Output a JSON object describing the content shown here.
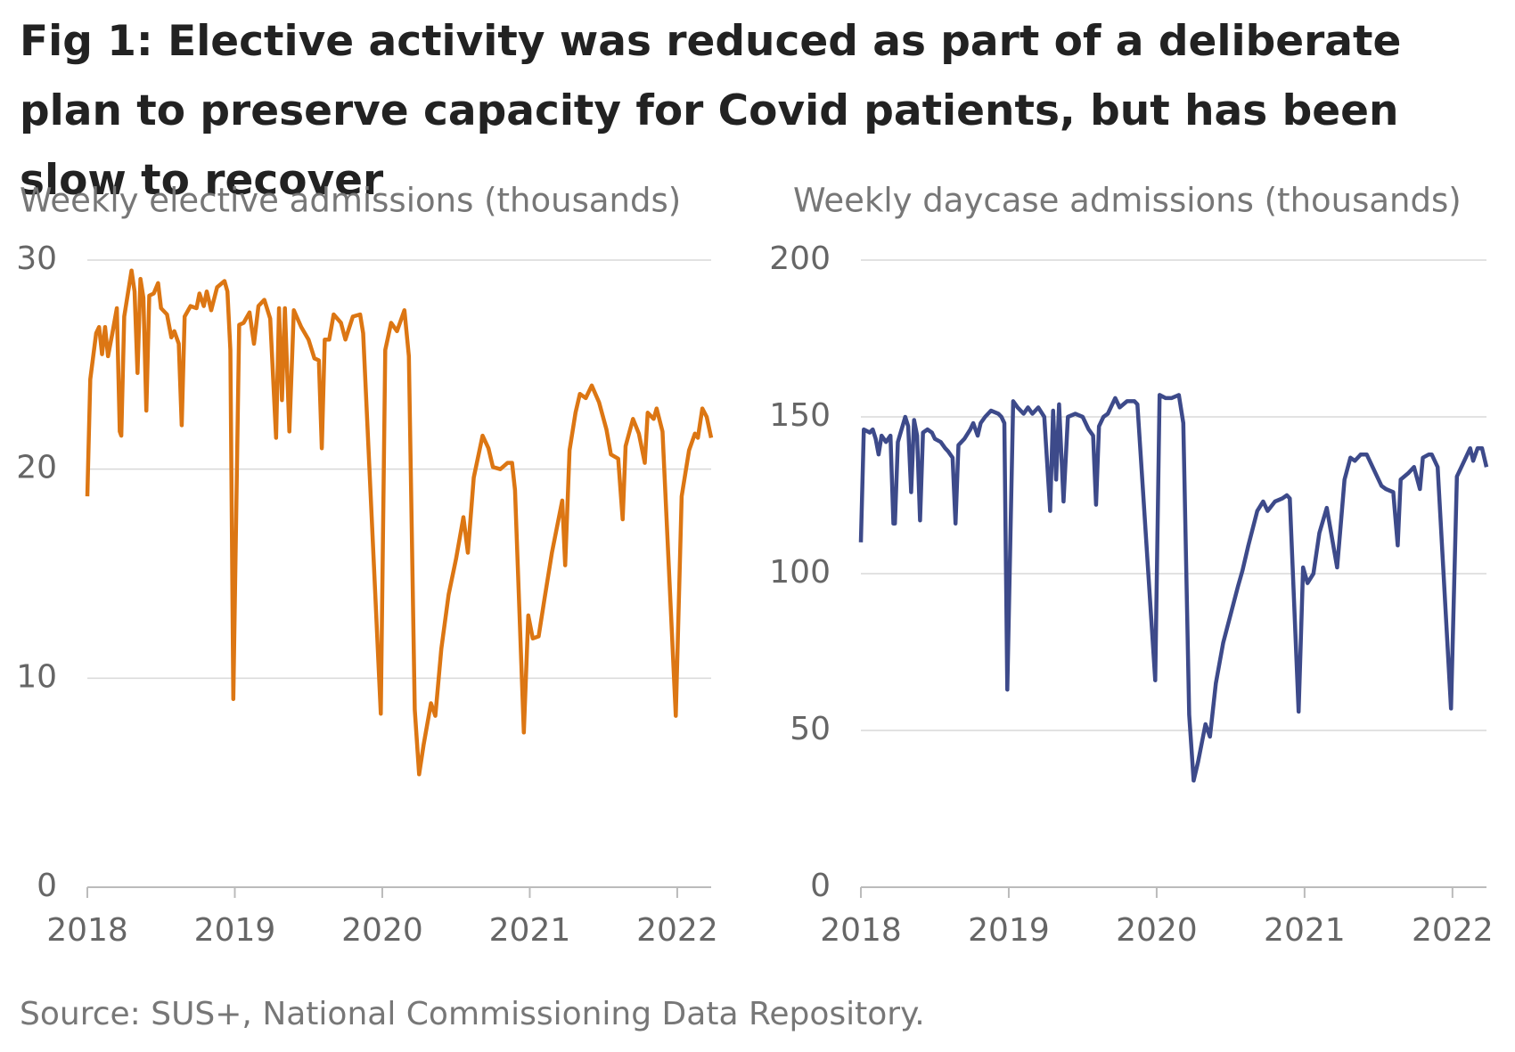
{
  "title": "Fig 1: Elective activity was reduced as part of a deliberate plan to preserve capacity for Covid patients, but has been slow to recover",
  "source": "Source: SUS+, National Commissioning Data Repository.",
  "chart_data": [
    {
      "type": "line",
      "axis_title": "Weekly elective admissions (thousands)",
      "color": "#dc7613",
      "xlim": [
        2018,
        2022.23
      ],
      "xticks": [
        2018,
        2019,
        2020,
        2021,
        2022
      ],
      "ylim": [
        0,
        30
      ],
      "yticks": [
        0,
        10,
        20,
        30
      ],
      "grid": true,
      "x": [
        2018.0,
        2018.02,
        2018.06,
        2018.08,
        2018.1,
        2018.12,
        2018.14,
        2018.17,
        2018.2,
        2018.22,
        2018.23,
        2018.25,
        2018.3,
        2018.32,
        2018.34,
        2018.36,
        2018.38,
        2018.4,
        2018.42,
        2018.45,
        2018.48,
        2018.5,
        2018.54,
        2018.57,
        2018.59,
        2018.62,
        2018.64,
        2018.66,
        2018.7,
        2018.74,
        2018.76,
        2018.79,
        2018.81,
        2018.84,
        2018.88,
        2018.93,
        2018.95,
        2018.97,
        2018.99,
        2019.03,
        2019.06,
        2019.1,
        2019.13,
        2019.16,
        2019.2,
        2019.24,
        2019.28,
        2019.3,
        2019.32,
        2019.34,
        2019.37,
        2019.4,
        2019.45,
        2019.5,
        2019.54,
        2019.57,
        2019.59,
        2019.61,
        2019.64,
        2019.67,
        2019.72,
        2019.75,
        2019.8,
        2019.85,
        2019.87,
        2019.99,
        2020.02,
        2020.06,
        2020.1,
        2020.15,
        2020.18,
        2020.22,
        2020.25,
        2020.28,
        2020.33,
        2020.36,
        2020.4,
        2020.45,
        2020.5,
        2020.55,
        2020.58,
        2020.62,
        2020.68,
        2020.72,
        2020.75,
        2020.8,
        2020.85,
        2020.88,
        2020.9,
        2020.96,
        2020.99,
        2021.02,
        2021.06,
        2021.1,
        2021.15,
        2021.22,
        2021.24,
        2021.27,
        2021.31,
        2021.34,
        2021.38,
        2021.42,
        2021.47,
        2021.52,
        2021.55,
        2021.6,
        2021.63,
        2021.65,
        2021.7,
        2021.74,
        2021.78,
        2021.8,
        2021.84,
        2021.86,
        2021.9,
        2021.99,
        2022.03,
        2022.08,
        2022.12,
        2022.14,
        2022.17,
        2022.2,
        2022.23
      ],
      "values": [
        18.7,
        24.3,
        26.5,
        26.8,
        25.5,
        26.8,
        25.4,
        26.5,
        27.7,
        21.8,
        21.6,
        27.3,
        29.5,
        28.5,
        24.6,
        29.1,
        28.2,
        22.8,
        28.3,
        28.4,
        28.9,
        27.7,
        27.4,
        26.3,
        26.6,
        26.0,
        22.1,
        27.3,
        27.8,
        27.7,
        28.4,
        27.8,
        28.5,
        27.6,
        28.7,
        29.0,
        28.5,
        25.7,
        9.0,
        26.9,
        27.0,
        27.5,
        26.0,
        27.8,
        28.1,
        27.2,
        21.5,
        27.7,
        23.3,
        27.7,
        21.8,
        27.6,
        26.8,
        26.2,
        25.3,
        25.2,
        21.0,
        26.2,
        26.2,
        27.4,
        27.0,
        26.2,
        27.3,
        27.4,
        26.5,
        8.3,
        25.7,
        27.0,
        26.6,
        27.6,
        25.4,
        8.5,
        5.4,
        6.8,
        8.8,
        8.2,
        11.4,
        14.0,
        15.7,
        17.7,
        16.0,
        19.6,
        21.6,
        21.0,
        20.1,
        20.0,
        20.3,
        20.3,
        19.0,
        7.4,
        13.0,
        11.9,
        12.0,
        13.8,
        16.0,
        18.5,
        15.4,
        20.9,
        22.7,
        23.6,
        23.4,
        24.0,
        23.2,
        21.9,
        20.7,
        20.5,
        17.6,
        21.1,
        22.4,
        21.7,
        20.3,
        22.7,
        22.4,
        22.9,
        21.8,
        8.2,
        18.7,
        20.9,
        21.7,
        21.5,
        22.9,
        22.5,
        21.5
      ]
    },
    {
      "type": "line",
      "axis_title": "Weekly daycase admissions (thousands)",
      "color": "#3d4a8a",
      "xlim": [
        2018,
        2022.23
      ],
      "xticks": [
        2018,
        2019,
        2020,
        2021,
        2022
      ],
      "ylim": [
        0,
        200
      ],
      "yticks": [
        0,
        50,
        100,
        150,
        200
      ],
      "grid": true,
      "x": [
        2018.0,
        2018.02,
        2018.06,
        2018.08,
        2018.1,
        2018.12,
        2018.14,
        2018.17,
        2018.2,
        2018.22,
        2018.23,
        2018.25,
        2018.3,
        2018.32,
        2018.34,
        2018.36,
        2018.38,
        2018.4,
        2018.42,
        2018.45,
        2018.48,
        2018.5,
        2018.54,
        2018.57,
        2018.59,
        2018.62,
        2018.64,
        2018.66,
        2018.7,
        2018.74,
        2018.76,
        2018.79,
        2018.81,
        2018.84,
        2018.88,
        2018.93,
        2018.95,
        2018.97,
        2018.99,
        2019.03,
        2019.06,
        2019.1,
        2019.13,
        2019.16,
        2019.2,
        2019.24,
        2019.28,
        2019.3,
        2019.32,
        2019.34,
        2019.37,
        2019.4,
        2019.45,
        2019.5,
        2019.54,
        2019.57,
        2019.59,
        2019.61,
        2019.64,
        2019.67,
        2019.72,
        2019.75,
        2019.8,
        2019.85,
        2019.87,
        2019.99,
        2020.02,
        2020.06,
        2020.1,
        2020.15,
        2020.18,
        2020.22,
        2020.25,
        2020.28,
        2020.33,
        2020.36,
        2020.4,
        2020.45,
        2020.5,
        2020.55,
        2020.58,
        2020.62,
        2020.68,
        2020.72,
        2020.75,
        2020.8,
        2020.85,
        2020.88,
        2020.9,
        2020.96,
        2020.99,
        2021.02,
        2021.06,
        2021.1,
        2021.15,
        2021.22,
        2021.24,
        2021.27,
        2021.31,
        2021.34,
        2021.38,
        2021.42,
        2021.47,
        2021.52,
        2021.55,
        2021.6,
        2021.63,
        2021.65,
        2021.7,
        2021.74,
        2021.78,
        2021.8,
        2021.84,
        2021.86,
        2021.9,
        2021.99,
        2022.03,
        2022.08,
        2022.12,
        2022.14,
        2022.17,
        2022.2,
        2022.23
      ],
      "values": [
        110,
        146,
        145,
        146,
        143,
        138,
        144,
        142,
        144,
        116,
        116,
        142,
        150,
        147,
        126,
        149,
        144,
        117,
        145,
        146,
        145,
        143,
        142,
        140,
        139,
        137,
        116,
        141,
        143,
        146,
        148,
        144,
        148,
        150,
        152,
        151,
        150,
        148,
        63,
        155,
        153,
        151,
        153,
        151,
        153,
        150,
        120,
        152,
        130,
        154,
        123,
        150,
        151,
        150,
        146,
        144,
        122,
        147,
        150,
        151,
        156,
        153,
        155,
        155,
        154,
        66,
        157,
        156,
        156,
        157,
        148,
        55,
        34,
        40,
        52,
        48,
        65,
        78,
        87,
        96,
        101,
        109,
        120,
        123,
        120,
        123,
        124,
        125,
        124,
        56,
        102,
        97,
        100,
        113,
        121,
        102,
        113,
        130,
        137,
        136,
        138,
        138,
        133,
        128,
        127,
        126,
        109,
        130,
        132,
        134,
        127,
        137,
        138,
        138,
        134,
        57,
        131,
        136,
        140,
        136,
        140,
        140,
        134
      ]
    }
  ]
}
